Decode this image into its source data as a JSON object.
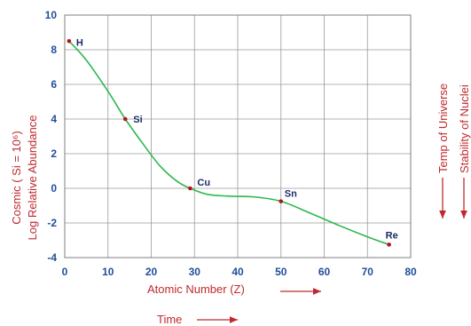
{
  "chart_data": {
    "type": "line",
    "title": "",
    "xlabel": "Atomic Number  (Z)",
    "ylabel_line1": "Cosmic ( Si = 10⁶)",
    "ylabel_line2": "Log Relative Abundance",
    "xlim": [
      0,
      80
    ],
    "ylim": [
      -4,
      10
    ],
    "x_ticks": [
      "0",
      "10",
      "20",
      "30",
      "40",
      "50",
      "60",
      "70",
      "80"
    ],
    "y_ticks": [
      "10",
      "8",
      "6",
      "4",
      "2",
      "0",
      "-2",
      "-4"
    ],
    "grid": true,
    "line_color": "#2db84d",
    "point_color": "#b3141c",
    "points": [
      {
        "label": "H",
        "x": 1,
        "y": 8.5
      },
      {
        "label": "Si",
        "x": 14,
        "y": 4.0
      },
      {
        "label": "Cu",
        "x": 29,
        "y": 0.0
      },
      {
        "label": "Sn",
        "x": 50,
        "y": -0.75
      },
      {
        "label": "Re",
        "x": 75,
        "y": -3.25
      }
    ],
    "curve": [
      [
        1,
        8.5
      ],
      [
        5,
        7.4
      ],
      [
        10,
        5.6
      ],
      [
        14,
        4.0
      ],
      [
        18,
        2.6
      ],
      [
        22,
        1.3
      ],
      [
        26,
        0.4
      ],
      [
        29,
        0.0
      ],
      [
        33,
        -0.35
      ],
      [
        38,
        -0.45
      ],
      [
        44,
        -0.5
      ],
      [
        50,
        -0.75
      ],
      [
        56,
        -1.35
      ],
      [
        63,
        -2.1
      ],
      [
        70,
        -2.8
      ],
      [
        75,
        -3.25
      ]
    ]
  },
  "annotations": {
    "time_label": "Time",
    "temp_label": "Temp of Universe",
    "stability_label": "Stability of Nuclei"
  }
}
